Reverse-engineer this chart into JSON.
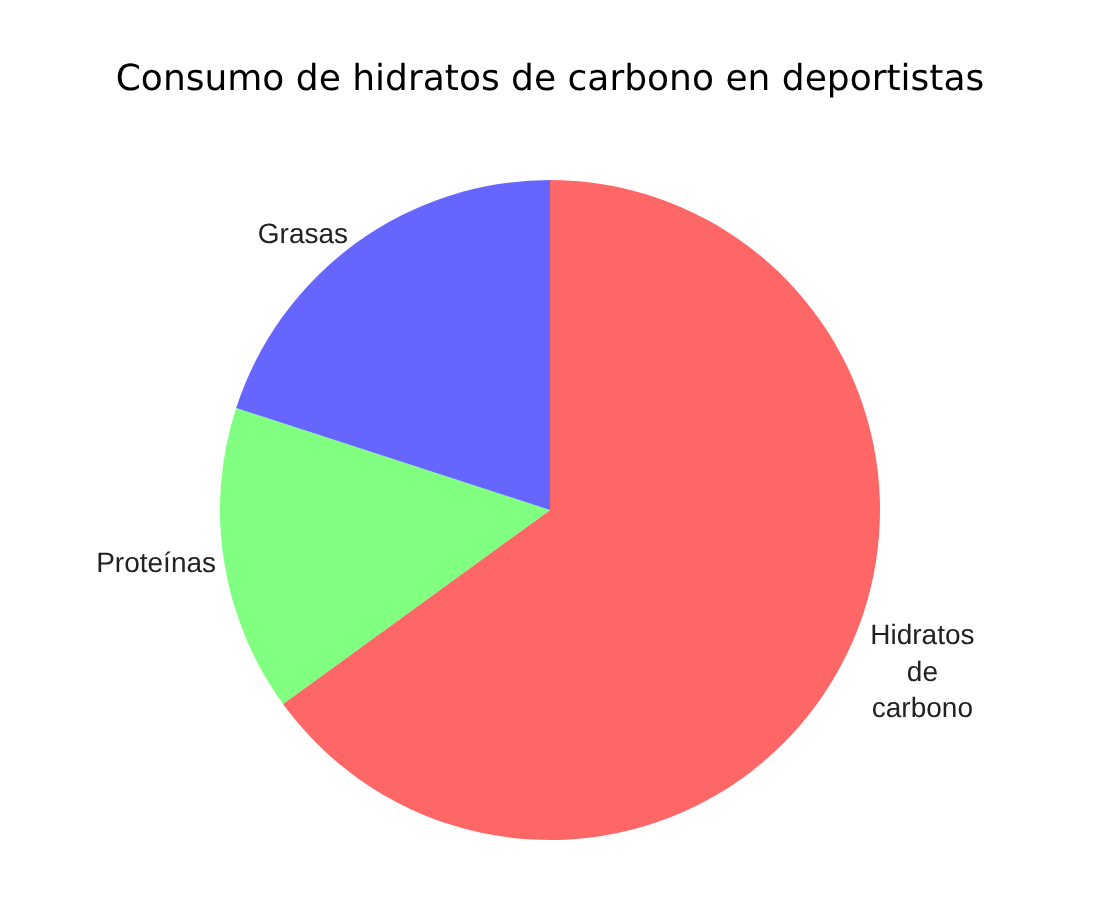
{
  "chart_data": {
    "type": "pie",
    "title": "Consumo de hidratos de carbono en deportistas",
    "categories": [
      "Hidratos de carbono",
      "Proteínas",
      "Grasas"
    ],
    "values": [
      65,
      15,
      20
    ],
    "colors": [
      "#ff6666",
      "#80ff80",
      "#6666ff"
    ],
    "legend": false
  }
}
